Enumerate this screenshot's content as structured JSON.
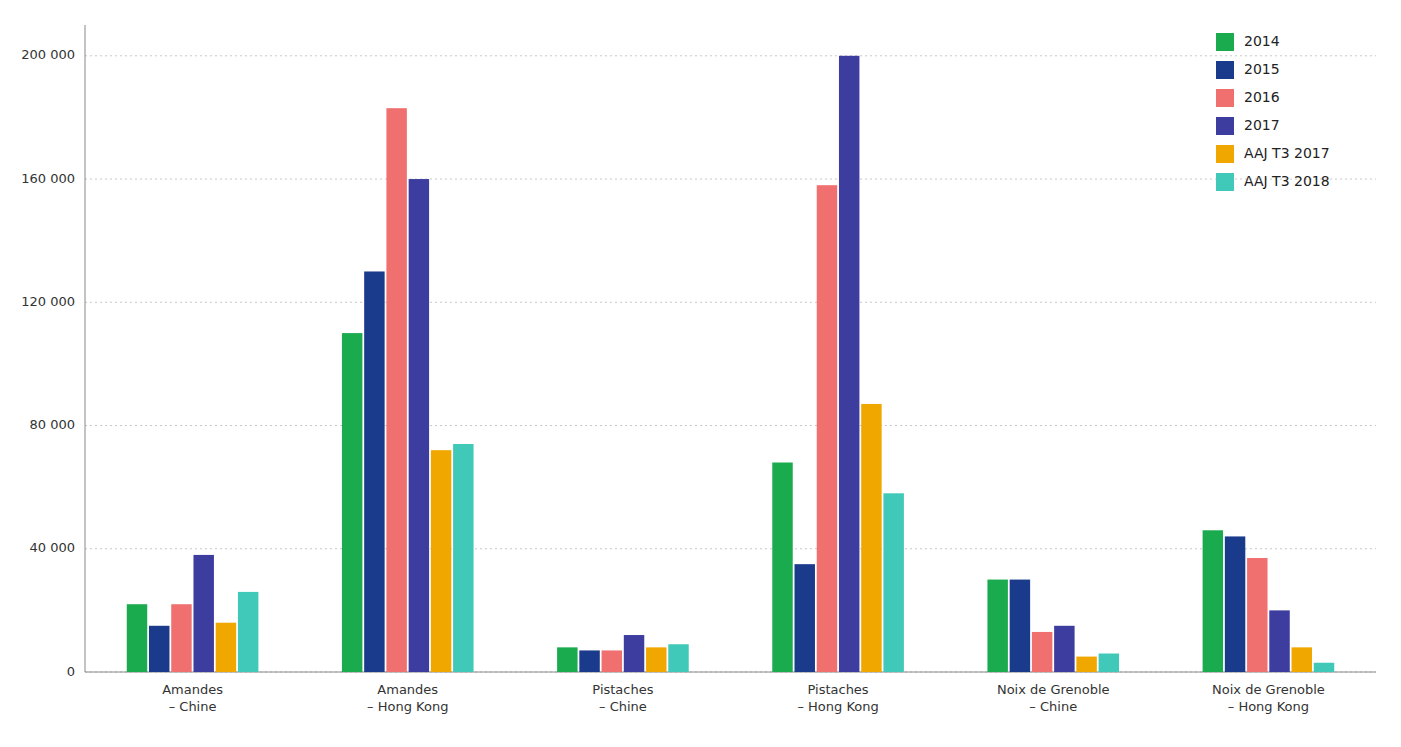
{
  "chart_data": {
    "type": "bar",
    "categories": [
      "Amandes\n– Chine",
      "Amandes\n– Hong Kong",
      "Pistaches\n– Chine",
      "Pistaches\n– Hong Kong",
      "Noix de Grenoble\n– Chine",
      "Noix de Grenoble\n– Hong Kong"
    ],
    "series": [
      {
        "name": "2014",
        "color": "#1aab4e",
        "values": [
          22000,
          110000,
          8000,
          68000,
          30000,
          46000
        ]
      },
      {
        "name": "2015",
        "color": "#1a3a8c",
        "values": [
          15000,
          130000,
          7000,
          35000,
          30000,
          44000
        ]
      },
      {
        "name": "2016",
        "color": "#f07070",
        "values": [
          22000,
          183000,
          7000,
          158000,
          13000,
          37000
        ]
      },
      {
        "name": "2017",
        "color": "#3d3da0",
        "values": [
          38000,
          160000,
          12000,
          200000,
          15000,
          20000
        ]
      },
      {
        "name": "AAJ T3 2017",
        "color": "#f0a800",
        "values": [
          16000,
          72000,
          8000,
          87000,
          5000,
          8000
        ]
      },
      {
        "name": "AAJ T3 2018",
        "color": "#40c8b8",
        "values": [
          26000,
          74000,
          9000,
          58000,
          6000,
          3000
        ]
      }
    ],
    "ylim": [
      0,
      210000
    ],
    "yticks": [
      0,
      {
        "value": 40000,
        "label": "40 000"
      },
      {
        "value": 80000,
        "label": "80 000"
      },
      {
        "value": 120000,
        "label": "120 000"
      },
      {
        "value": 160000,
        "label": "160 000"
      },
      {
        "value": 200000,
        "label": "200 000"
      }
    ],
    "grid": true,
    "legend": "upper right"
  }
}
